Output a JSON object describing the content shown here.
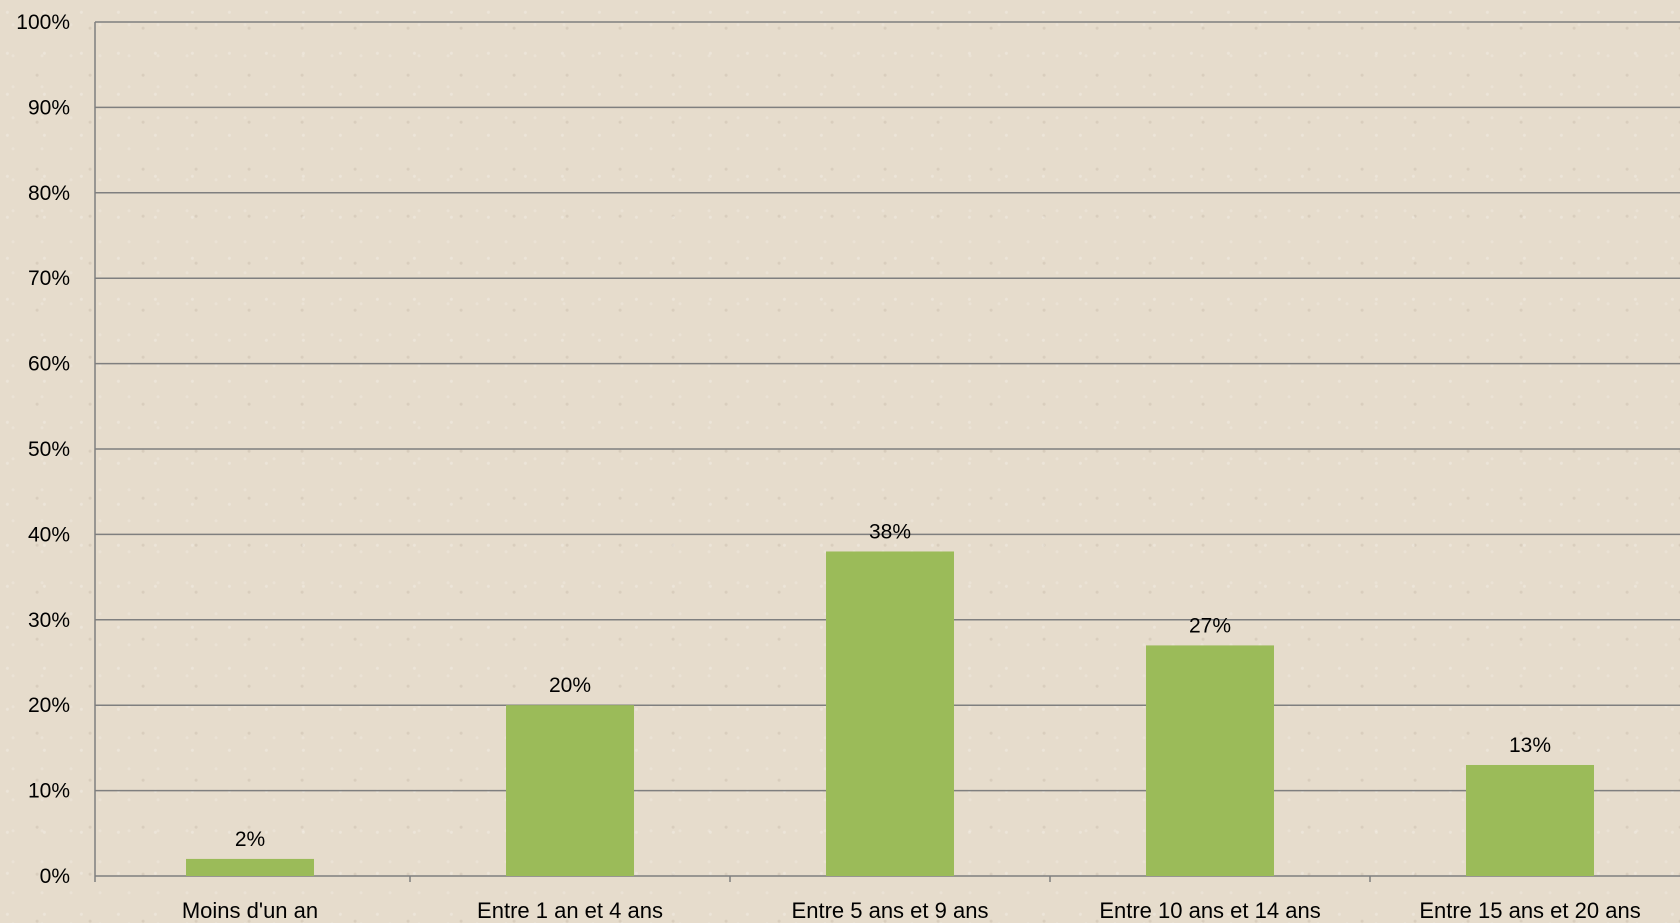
{
  "chart_data": {
    "type": "bar",
    "categories": [
      "Moins d'un an",
      "Entre 1 an et 4 ans",
      "Entre 5 ans et 9 ans",
      "Entre 10 ans et 14 ans",
      "Entre 15 ans et 20 ans"
    ],
    "values": [
      2,
      20,
      38,
      27,
      13
    ],
    "data_labels": [
      "2%",
      "20%",
      "38%",
      "27%",
      "13%"
    ],
    "y_ticks": [
      "0%",
      "10%",
      "20%",
      "30%",
      "40%",
      "50%",
      "60%",
      "70%",
      "80%",
      "90%",
      "100%"
    ],
    "ylim": [
      0,
      100
    ],
    "grid": true,
    "bar_color": "#9bbb59",
    "gridline_color": "#7f7f7f"
  }
}
